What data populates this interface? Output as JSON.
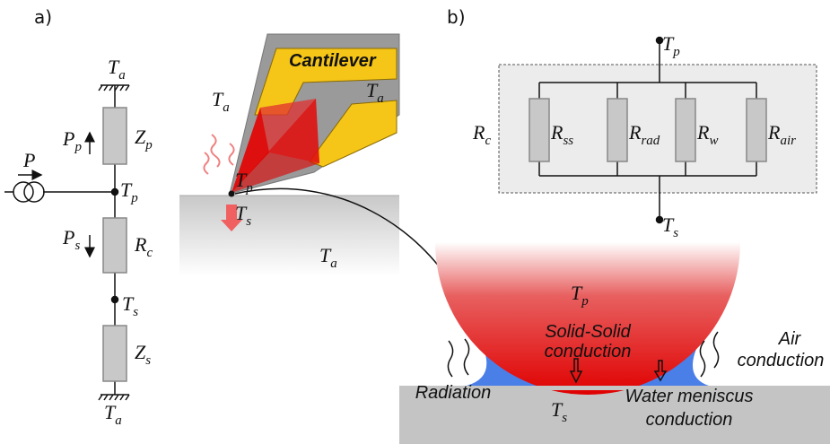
{
  "panel_labels": {
    "a": "a)",
    "b": "b)"
  },
  "circuit_a": {
    "top_ground": {
      "base": "T",
      "sub": "a"
    },
    "heat_flux_probe": {
      "base": "P",
      "sub": "p"
    },
    "impedance_probe": {
      "base": "Z",
      "sub": "p"
    },
    "source": {
      "base": "P"
    },
    "probe_node": {
      "base": "T",
      "sub": "p"
    },
    "heat_flux_sample": {
      "base": "P",
      "sub": "s"
    },
    "contact_resistance": {
      "base": "R",
      "sub": "c"
    },
    "sample_node": {
      "base": "T",
      "sub": "s"
    },
    "impedance_sample": {
      "base": "Z",
      "sub": "s"
    },
    "bottom_ground": {
      "base": "T",
      "sub": "a"
    }
  },
  "probe_sketch": {
    "cantilever": "Cantilever",
    "cantilever_temp": {
      "base": "T",
      "sub": "a"
    },
    "air_temp": {
      "base": "T",
      "sub": "a"
    },
    "tip_temp": {
      "base": "T",
      "sub": "p"
    },
    "contact_temp": {
      "base": "T",
      "sub": "s"
    },
    "sample_temp": {
      "base": "T",
      "sub": "a"
    }
  },
  "circuit_b": {
    "top": {
      "base": "T",
      "sub": "p"
    },
    "group": {
      "base": "R",
      "sub": "c"
    },
    "resistors": [
      {
        "base": "R",
        "sub": "ss"
      },
      {
        "base": "R",
        "sub": "rad"
      },
      {
        "base": "R",
        "sub": "w"
      },
      {
        "base": "R",
        "sub": "air"
      }
    ],
    "bottom": {
      "base": "T",
      "sub": "s"
    }
  },
  "contact_zoom": {
    "tip_temp": {
      "base": "T",
      "sub": "p"
    },
    "solid": [
      "Solid-Solid",
      "conduction"
    ],
    "air": [
      "Air",
      "conduction"
    ],
    "radiation": "Radiation",
    "water": [
      "Water meniscus",
      "conduction"
    ],
    "sample_temp": {
      "base": "T",
      "sub": "s"
    }
  }
}
